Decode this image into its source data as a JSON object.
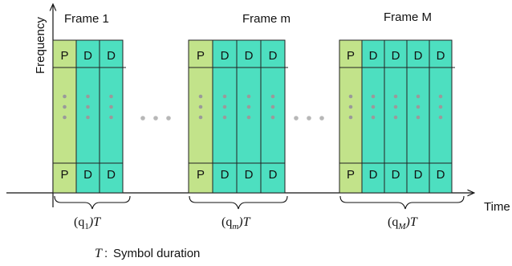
{
  "axes": {
    "y_label": "Frequency",
    "x_label": "Time"
  },
  "frames": [
    {
      "title": "Frame 1",
      "duration_base": "(q",
      "duration_sub": "1",
      "duration_tail": ")T",
      "columns": [
        "P",
        "D",
        "D"
      ]
    },
    {
      "title": "Frame m",
      "duration_base": "(q",
      "duration_sub": "m",
      "duration_tail": ")T",
      "columns": [
        "P",
        "D",
        "D",
        "D"
      ]
    },
    {
      "title": "Frame M",
      "duration_base": "(q",
      "duration_sub": "M",
      "duration_tail": ")T",
      "columns": [
        "P",
        "D",
        "D",
        "D",
        "D"
      ]
    }
  ],
  "legend": {
    "symbol": "T",
    "separator": ":",
    "text": "Symbol duration"
  },
  "colors": {
    "pilot": "#c2e38a",
    "data": "#4ddfc0",
    "dot": "#9a9a9a",
    "between_dot": "#b8b8b8"
  }
}
